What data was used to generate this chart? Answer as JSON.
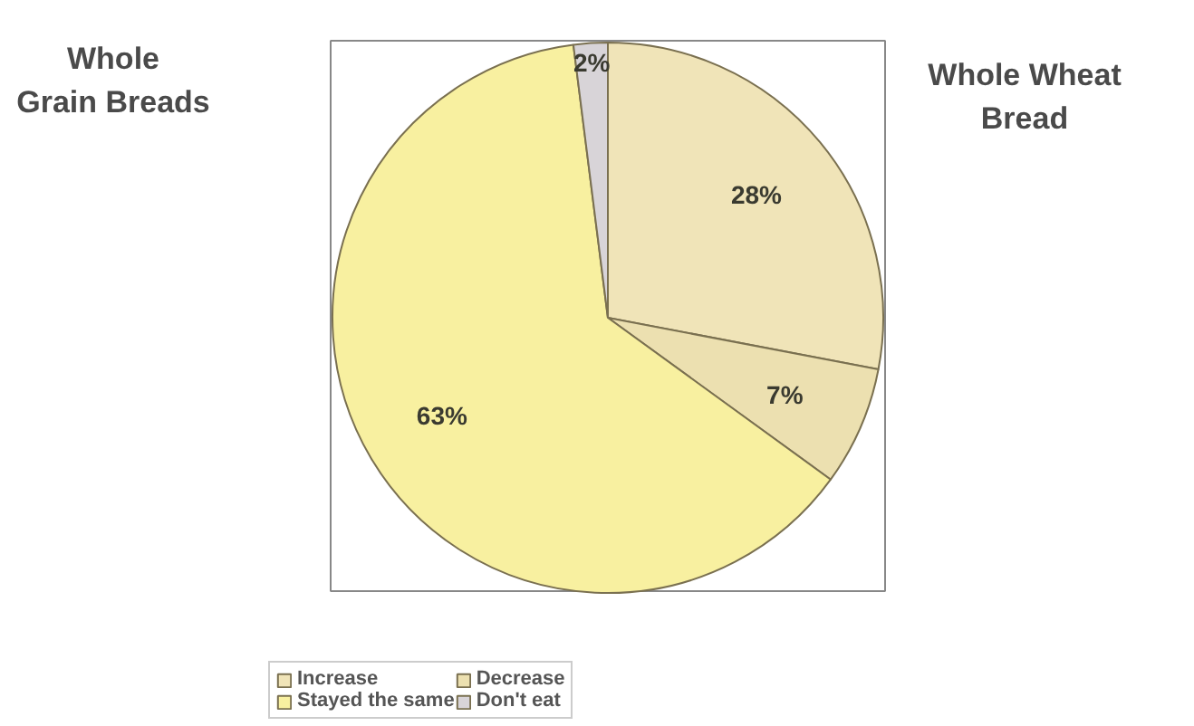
{
  "chart_data": {
    "type": "pie",
    "annotations": [
      "Whole Grain Breads",
      "Whole Wheat Bread"
    ],
    "categories": [
      "Increase",
      "Decrease",
      "Stayed the same",
      "Don't eat"
    ],
    "values": [
      28,
      7,
      63,
      2
    ],
    "colors": [
      "#f0e4b8",
      "#ece0b0",
      "#f8f0a0",
      "#d8d4d8"
    ],
    "value_labels": [
      "28%",
      "7%",
      "63%",
      "2%"
    ],
    "legend": "bottom"
  }
}
